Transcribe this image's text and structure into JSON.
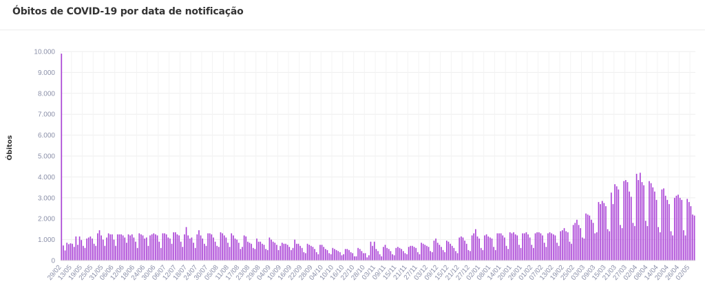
{
  "title": "Óbitos de COVID-19 por data de notificação",
  "chart_data": {
    "type": "bar",
    "title": "Óbitos de COVID-19 por data de notificação",
    "xlabel": "",
    "ylabel": "Óbitos",
    "ylim": [
      0,
      10000
    ],
    "grid": true,
    "bar_color": "#a93fd6",
    "y_ticks": [
      "0",
      "1.000",
      "2.000",
      "3.000",
      "4.000",
      "5.000",
      "6.000",
      "7.000",
      "8.000",
      "9.000",
      "10.000"
    ],
    "x_tick_labels": [
      "29/02",
      "13/05",
      "19/05",
      "25/05",
      "31/05",
      "06/06",
      "12/06",
      "18/06",
      "24/06",
      "30/06",
      "06/07",
      "12/07",
      "18/07",
      "24/07",
      "30/07",
      "05/08",
      "11/08",
      "17/08",
      "23/08",
      "29/08",
      "04/09",
      "10/09",
      "16/09",
      "22/09",
      "28/09",
      "04/10",
      "10/10",
      "16/10",
      "22/10",
      "28/10",
      "03/11",
      "09/11",
      "15/11",
      "21/11",
      "27/11",
      "03/12",
      "09/12",
      "15/12",
      "21/12",
      "27/12",
      "02/01",
      "08/01",
      "14/01",
      "20/01",
      "26/01",
      "01/02",
      "07/02",
      "13/02",
      "19/02",
      "25/02",
      "03/03",
      "09/03",
      "15/03",
      "21/03",
      "27/03",
      "02/04",
      "08/04",
      "14/04",
      "20/04",
      "26/04",
      "02/05"
    ],
    "values": [
      9900,
      720,
      480,
      850,
      780,
      820,
      800,
      650,
      1150,
      750,
      1150,
      980,
      700,
      600,
      1050,
      1100,
      1150,
      1050,
      800,
      700,
      1300,
      1450,
      1200,
      1000,
      700,
      1100,
      1300,
      1250,
      1250,
      1000,
      700,
      1250,
      1250,
      1250,
      1200,
      1100,
      850,
      1250,
      1200,
      1250,
      1100,
      900,
      600,
      1300,
      1250,
      1200,
      1050,
      1100,
      700,
      1200,
      1250,
      1300,
      1250,
      1200,
      900,
      600,
      1300,
      1300,
      1250,
      1100,
      1050,
      800,
      1350,
      1350,
      1250,
      1200,
      900,
      650,
      1250,
      1600,
      1200,
      1050,
      1100,
      850,
      600,
      1250,
      1450,
      1200,
      1050,
      800,
      700,
      1300,
      1300,
      1250,
      1100,
      900,
      700,
      650,
      1350,
      1300,
      1200,
      1100,
      850,
      650,
      1300,
      1200,
      1050,
      1000,
      850,
      550,
      650,
      1200,
      1150,
      900,
      850,
      800,
      600,
      550,
      1050,
      900,
      900,
      800,
      750,
      550,
      500,
      1100,
      1000,
      900,
      850,
      750,
      500,
      700,
      850,
      800,
      800,
      750,
      650,
      500,
      600,
      1000,
      800,
      800,
      700,
      600,
      400,
      350,
      800,
      750,
      700,
      650,
      550,
      400,
      300,
      750,
      750,
      650,
      550,
      500,
      350,
      300,
      600,
      550,
      500,
      450,
      400,
      250,
      300,
      550,
      550,
      500,
      400,
      350,
      200,
      200,
      600,
      550,
      450,
      350,
      350,
      150,
      250,
      900,
      700,
      900,
      550,
      450,
      300,
      200,
      650,
      750,
      600,
      550,
      450,
      300,
      250,
      600,
      650,
      600,
      550,
      450,
      350,
      300,
      650,
      700,
      700,
      650,
      600,
      400,
      300,
      850,
      800,
      750,
      700,
      650,
      450,
      400,
      950,
      1050,
      850,
      750,
      650,
      500,
      400,
      950,
      900,
      800,
      700,
      600,
      450,
      350,
      1100,
      1150,
      1100,
      950,
      800,
      500,
      450,
      1200,
      1300,
      1500,
      1150,
      1050,
      600,
      500,
      1200,
      1250,
      1150,
      1100,
      1050,
      650,
      500,
      1300,
      1300,
      1300,
      1200,
      1100,
      700,
      550,
      1350,
      1300,
      1350,
      1250,
      1200,
      750,
      600,
      1300,
      1300,
      1350,
      1250,
      1100,
      750,
      600,
      1300,
      1350,
      1350,
      1300,
      1200,
      850,
      650,
      1300,
      1350,
      1300,
      1250,
      1200,
      850,
      700,
      1400,
      1450,
      1550,
      1400,
      1350,
      900,
      800,
      1700,
      1800,
      1950,
      1700,
      1550,
      1100,
      1050,
      2250,
      2200,
      2150,
      1950,
      1800,
      1300,
      1350,
      2800,
      2700,
      2850,
      2750,
      2600,
      1500,
      1400,
      3250,
      2700,
      3650,
      3550,
      3400,
      1700,
      1550,
      3800,
      3850,
      3750,
      3300,
      3050,
      1800,
      1650,
      4150,
      3850,
      4200,
      3750,
      3600,
      1900,
      1650,
      3800,
      3700,
      3500,
      3300,
      2900,
      1600,
      1350,
      3400,
      3450,
      3100,
      2900,
      2700,
      1400,
      1200,
      3000,
      3100,
      3150,
      3000,
      2900,
      1450,
      1200,
      2950,
      2800,
      2600,
      2200,
      2150
    ],
    "series": [
      {
        "name": "Óbitos",
        "values": "same as values"
      }
    ]
  }
}
